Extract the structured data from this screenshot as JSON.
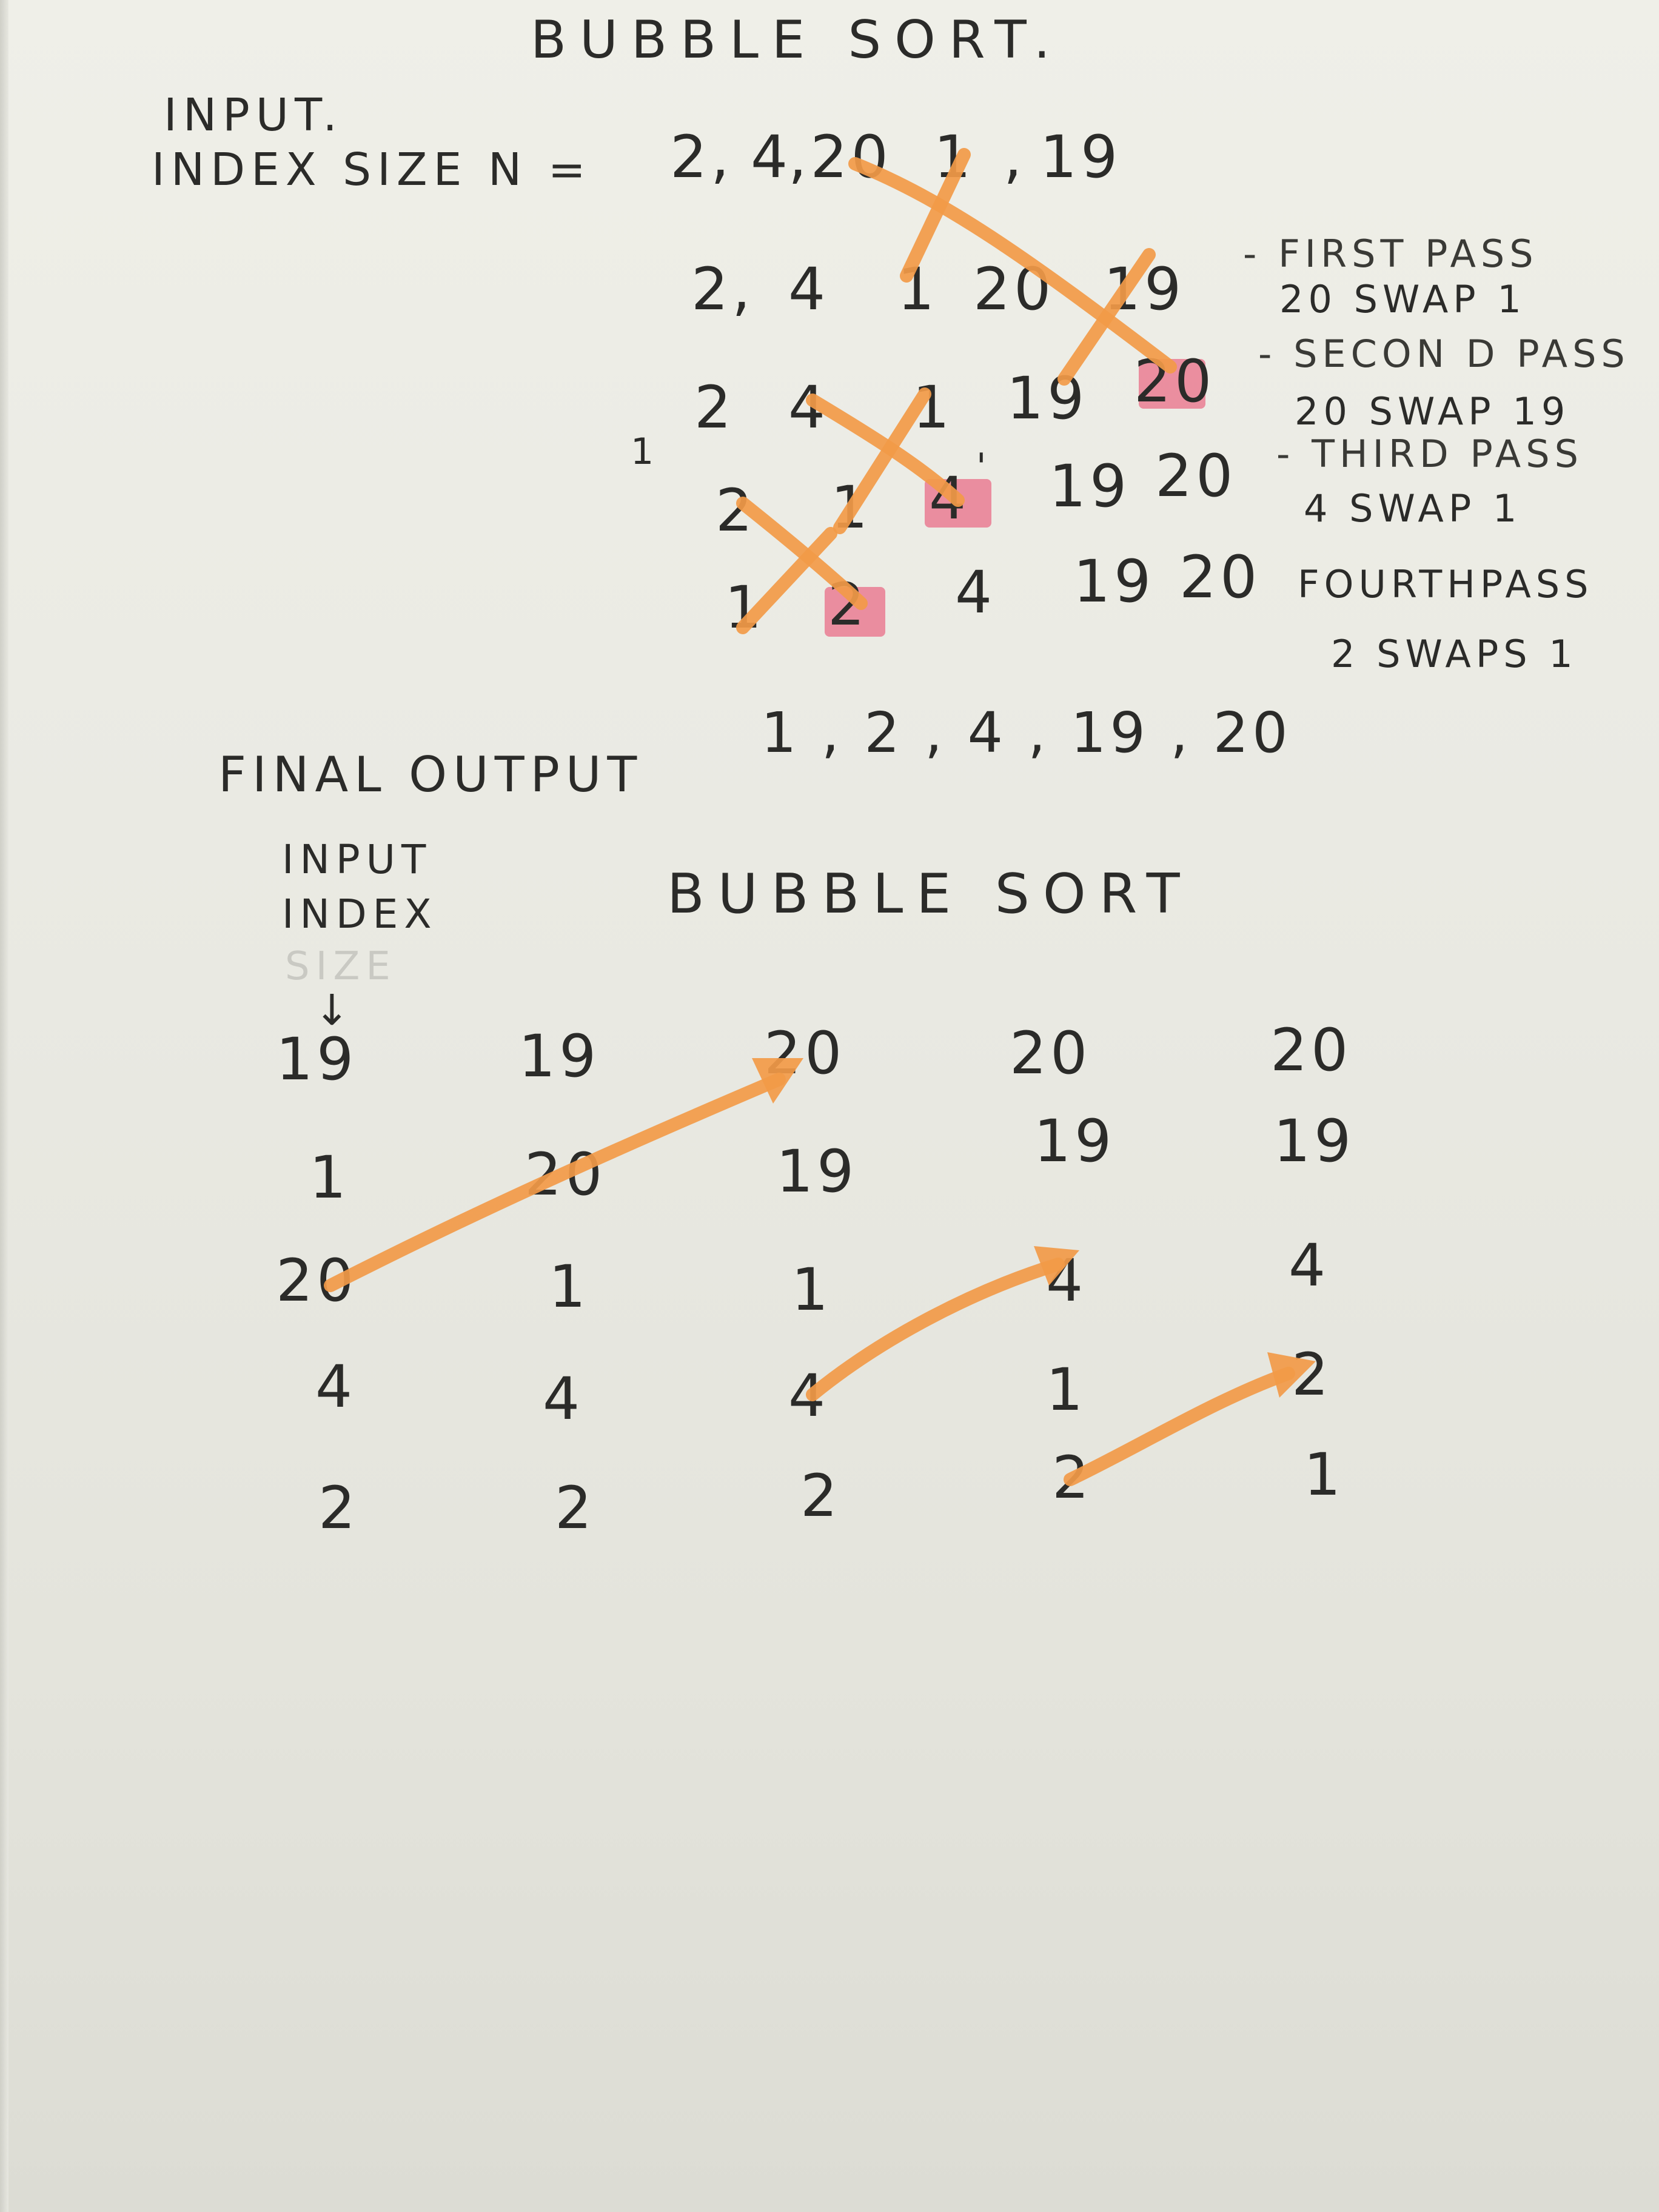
{
  "top": {
    "title": "BUBBLE SORT.",
    "input_label": "INPUT.",
    "index_label": "INDEX SIZE N =",
    "input_values": [
      "2,",
      "4",
      ",20",
      "1",
      ",",
      "19"
    ],
    "pass1_values": [
      "2,",
      "4",
      "1",
      "20",
      "19"
    ],
    "pass2_values": [
      "2",
      "4",
      "1",
      "19",
      "20"
    ],
    "pass3_values": [
      "2",
      "1",
      "4",
      "19",
      "20"
    ],
    "pass4_values": [
      "1",
      "2",
      "4",
      "19",
      "20"
    ],
    "stray_mark_1": "1",
    "stray_mark_2": "'",
    "notes": [
      {
        "line1": "- FIRST PASS",
        "line2": "20 SWAP 1"
      },
      {
        "line1": "- SECON D PASS",
        "line2": "20 SWAP 19"
      },
      {
        "line1": "- THIRD PASS",
        "line2": "4 SWAP 1"
      },
      {
        "line1": "FOURTHPASS",
        "line2": "2 SWAPS 1"
      }
    ],
    "final_label": "FINAL   OUTPUT",
    "final_values": "1 , 2 , 4 , 19 , 20"
  },
  "bottom": {
    "title": "BUBBLE SORT",
    "input_label": "INPUT",
    "index_label": "INDEX",
    "size_label": "SIZE",
    "arrow_glyph": "↓",
    "columns": [
      [
        "19",
        "1",
        "20",
        "4",
        "2"
      ],
      [
        "19",
        "20",
        "1",
        "4",
        "2"
      ],
      [
        "20",
        "19",
        "1",
        "4",
        "2"
      ],
      [
        "20",
        "19",
        "4",
        "1",
        "2"
      ],
      [
        "20",
        "19",
        "4",
        "2",
        "1"
      ]
    ]
  },
  "colors": {
    "ink": "#2b2b29",
    "orange_pencil": "#f29a48",
    "pink_highlight": "#ea5a7a",
    "paper": "#e9e9e2"
  }
}
